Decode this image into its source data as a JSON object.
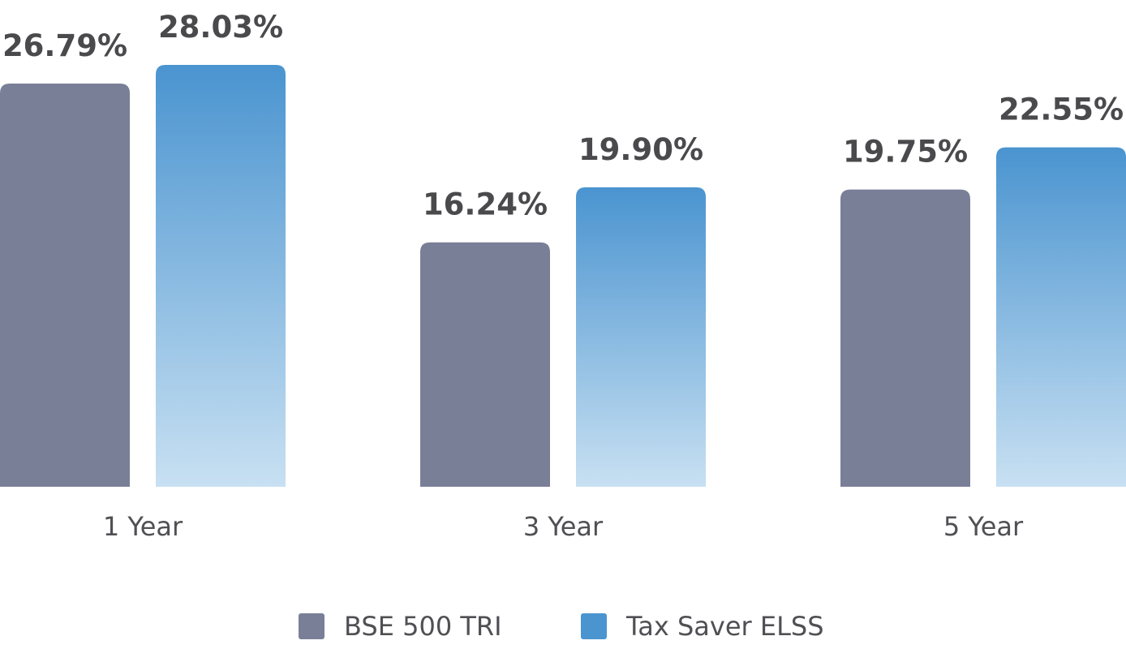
{
  "chart_data": {
    "type": "bar",
    "categories": [
      "1 Year",
      "3 Year",
      "5 Year"
    ],
    "series": [
      {
        "name": "BSE 500 TRI",
        "values": [
          26.79,
          16.24,
          19.75
        ],
        "labels": [
          "26.79%",
          "16.24%",
          "19.75%"
        ],
        "color": "#7a7f98"
      },
      {
        "name": "Tax Saver ELSS",
        "values": [
          28.03,
          19.9,
          22.55
        ],
        "labels": [
          "28.03%",
          "19.90%",
          "22.55%"
        ],
        "color": "#4a94d0",
        "gradient_end_color": "#c8e0f2"
      }
    ],
    "ylim": [
      0,
      34.3
    ],
    "grid": false,
    "legend_position": "bottom-center",
    "title": "",
    "xlabel": "",
    "ylabel": ""
  }
}
